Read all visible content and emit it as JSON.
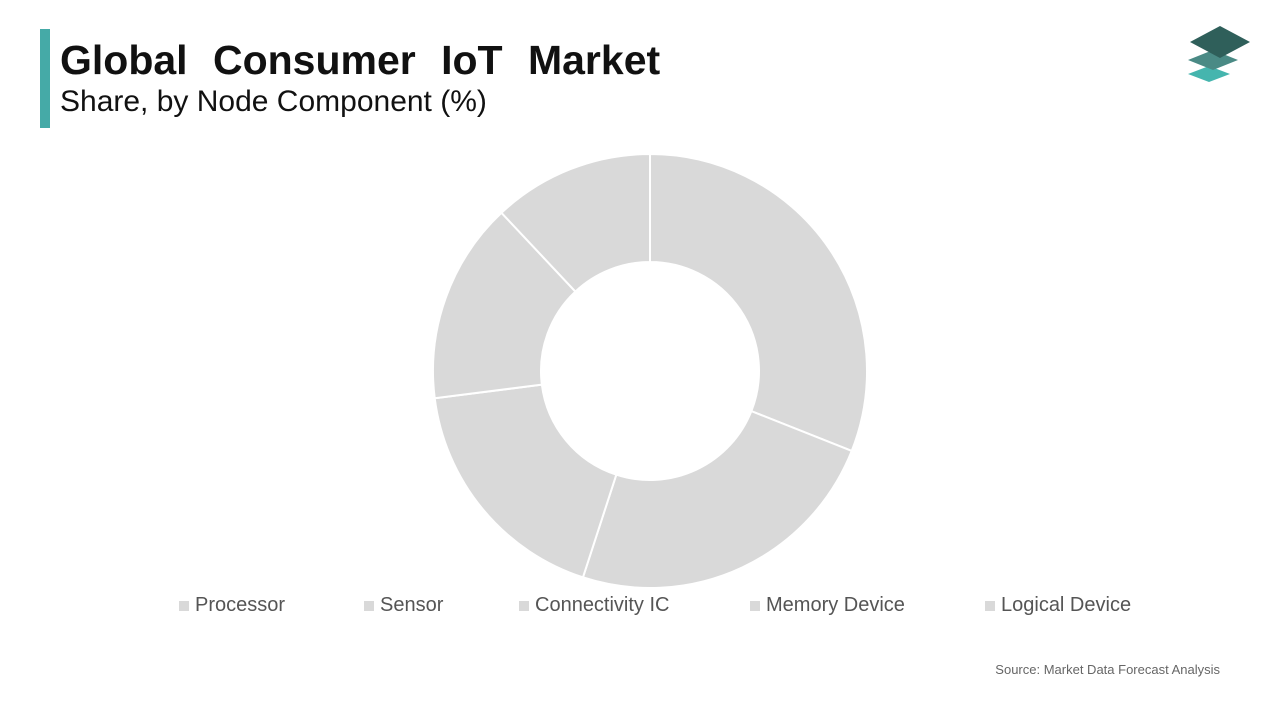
{
  "header": {
    "title": "Global Consumer IoT Market",
    "subtitle": "Share, by Node Component (%)"
  },
  "colors": {
    "accent": "#45aaa7",
    "slice": "#d9d9d9",
    "slice_border": "#ffffff",
    "logo_top": "#2f5f5a",
    "logo_mid": "#4a8a85",
    "logo_bottom": "#45b5ae"
  },
  "chart_data": {
    "type": "pie",
    "donut": true,
    "categories": [
      "Processor",
      "Sensor",
      "Connectivity IC",
      "Memory Device",
      "Logical Device"
    ],
    "values": [
      31,
      24,
      18,
      15,
      12
    ],
    "legend_position": "bottom"
  },
  "legend": {
    "items": [
      "Processor",
      "Sensor",
      "Connectivity IC",
      "Memory Device",
      "Logical Device"
    ]
  },
  "footer": {
    "source": "Source: Market Data Forecast Analysis"
  }
}
